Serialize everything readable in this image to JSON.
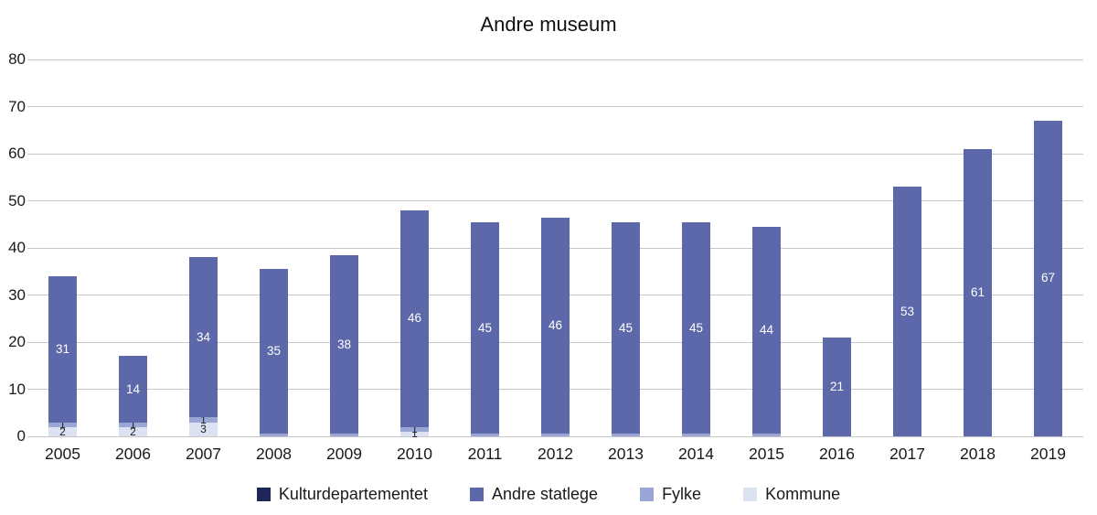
{
  "chart_data": {
    "type": "bar",
    "stacked": true,
    "title": "Andre museum",
    "categories": [
      "2005",
      "2006",
      "2007",
      "2008",
      "2009",
      "2010",
      "2011",
      "2012",
      "2013",
      "2014",
      "2015",
      "2016",
      "2017",
      "2018",
      "2019"
    ],
    "series": [
      {
        "name": "Kommune",
        "color": "#dde2f3",
        "label_color": "#222222",
        "values": [
          2,
          2,
          3,
          0,
          0,
          1,
          0,
          0,
          0,
          0,
          0,
          0,
          0,
          0,
          0
        ]
      },
      {
        "name": "Fylke",
        "color": "#9aa6d5",
        "label_color": "#222222",
        "values": [
          1,
          1,
          1,
          0.5,
          0.5,
          1,
          0.5,
          0.5,
          0.5,
          0.5,
          0.5,
          0,
          0,
          0,
          0
        ]
      },
      {
        "name": "Andre statlege",
        "color": "#5c68aa",
        "label_color": "#ffffff",
        "values": [
          31,
          14,
          34,
          35,
          38,
          46,
          45,
          46,
          45,
          45,
          44,
          21,
          53,
          61,
          67
        ]
      },
      {
        "name": "Kulturdepartementet",
        "color": "#1f2657",
        "label_color": "#ffffff",
        "values": [
          0,
          0,
          0,
          0,
          0,
          0,
          0,
          0,
          0,
          0,
          0,
          0,
          0,
          0,
          0
        ]
      }
    ],
    "legend_order": [
      "Kulturdepartementet",
      "Andre statlege",
      "Fylke",
      "Kommune"
    ],
    "ylim": [
      0,
      80
    ],
    "yticks": [
      0,
      10,
      20,
      30,
      40,
      50,
      60,
      70,
      80
    ],
    "grid": true,
    "legend_position": "bottom",
    "xlabel": "",
    "ylabel": ""
  }
}
